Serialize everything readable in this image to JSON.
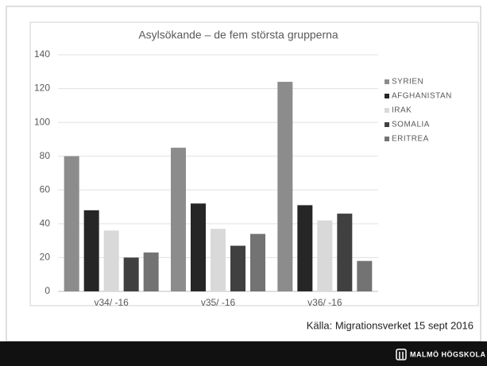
{
  "chart_data": {
    "type": "bar",
    "title": "Asylsökande – de fem största grupperna",
    "categories": [
      "v34/ -16",
      "v35/ -16",
      "v36/ -16"
    ],
    "series": [
      {
        "name": "SYRIEN",
        "color": "#8c8c8c",
        "values": [
          80,
          85,
          124
        ]
      },
      {
        "name": "AFGHANISTAN",
        "color": "#262626",
        "values": [
          48,
          52,
          51
        ]
      },
      {
        "name": "IRAK",
        "color": "#d9d9d9",
        "values": [
          36,
          37,
          42
        ]
      },
      {
        "name": "SOMALIA",
        "color": "#404040",
        "values": [
          20,
          27,
          46
        ]
      },
      {
        "name": "ERITREA",
        "color": "#737373",
        "values": [
          23,
          34,
          18
        ]
      }
    ],
    "ylim": [
      0,
      140
    ],
    "yticks": [
      0,
      20,
      40,
      60,
      80,
      100,
      120,
      140
    ],
    "grid": true,
    "legend": "right"
  },
  "source": "Källa: Migrationsverket 15 sept 2016",
  "brand": "MALMÖ HÖGSKOLA"
}
